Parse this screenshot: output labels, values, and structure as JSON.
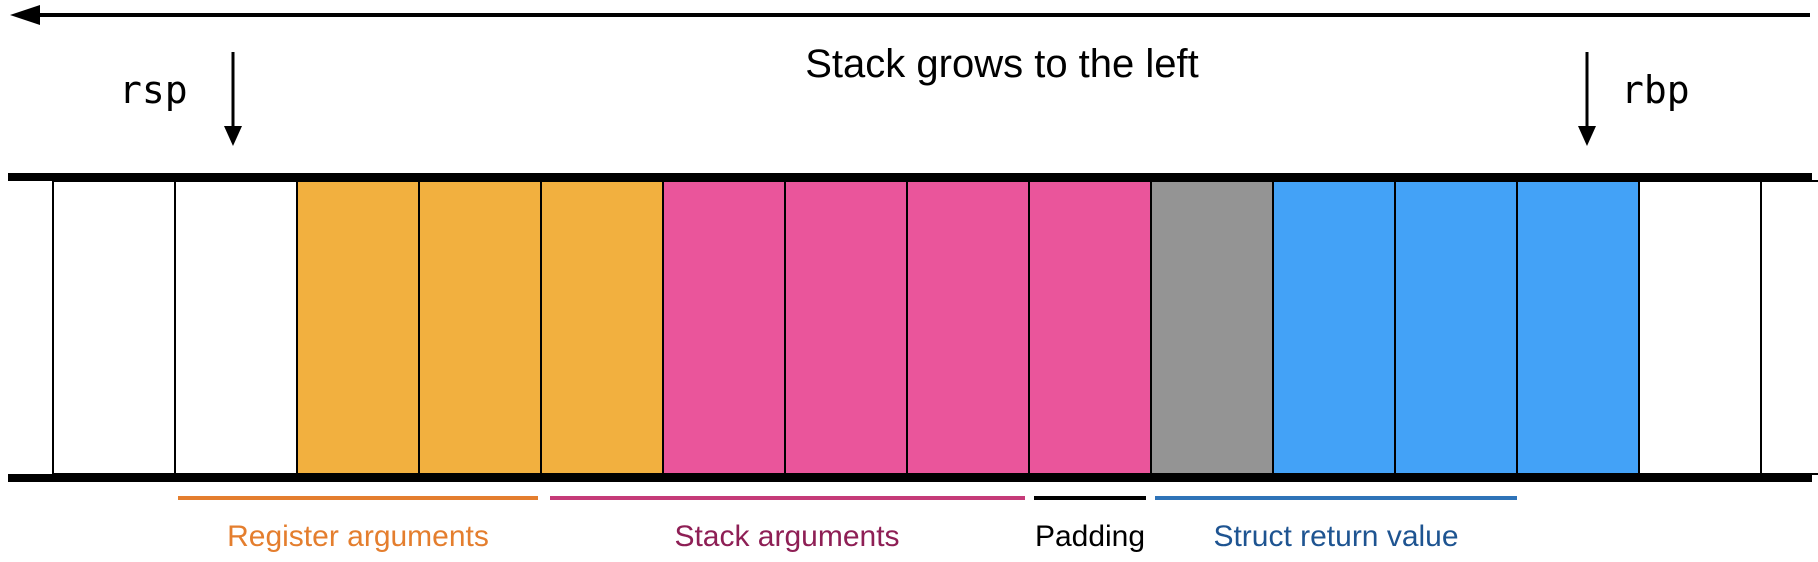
{
  "diagram": {
    "title": "Stack grows to the left",
    "pointers": {
      "rsp": "rsp",
      "rbp": "rbp"
    },
    "slots": [
      {
        "segment": "empty"
      },
      {
        "segment": "empty"
      },
      {
        "segment": "register"
      },
      {
        "segment": "register"
      },
      {
        "segment": "register"
      },
      {
        "segment": "stack"
      },
      {
        "segment": "stack"
      },
      {
        "segment": "stack"
      },
      {
        "segment": "stack"
      },
      {
        "segment": "padding"
      },
      {
        "segment": "struct"
      },
      {
        "segment": "struct"
      },
      {
        "segment": "struct"
      },
      {
        "segment": "empty"
      },
      {
        "segment": "empty"
      }
    ],
    "legend": [
      {
        "key": "register",
        "label": "Register arguments",
        "fill": "#F2B03F",
        "text_color": "#E47E2E",
        "line_color": "#E47E2E"
      },
      {
        "key": "stack",
        "label": "Stack arguments",
        "fill": "#EA559B",
        "text_color": "#8E1F55",
        "line_color": "#C53A78"
      },
      {
        "key": "padding",
        "label": "Padding",
        "fill": "#949494",
        "text_color": "#000000",
        "line_color": "#000000"
      },
      {
        "key": "struct",
        "label": "Struct return value",
        "fill": "#43A2F7",
        "text_color": "#1E5491",
        "line_color": "#2E73B8"
      }
    ],
    "colors": {
      "empty": "#ffffff",
      "stroke": "#000000"
    }
  }
}
